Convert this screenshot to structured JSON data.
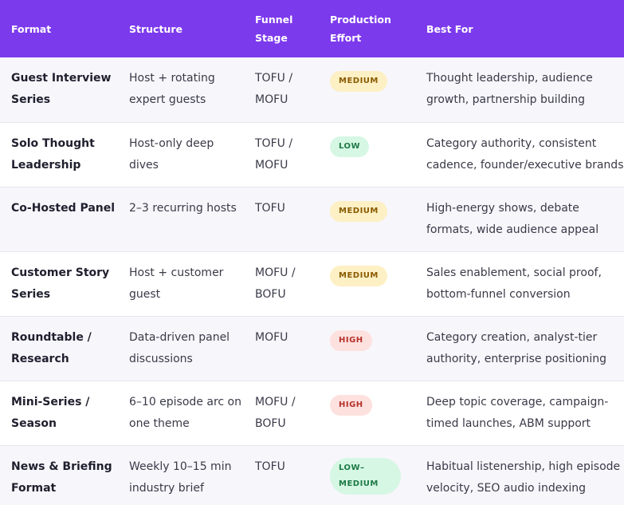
{
  "headers": {
    "format": "Format",
    "structure": "Structure",
    "funnel_line1": "Funnel",
    "funnel_line2": "Stage",
    "effort_line1": "Production",
    "effort_line2": "Effort",
    "best_for": "Best For"
  },
  "rows": [
    {
      "format": "Guest Interview Series",
      "structure": "Host + rotating expert guests",
      "funnel": "TOFU / MOFU",
      "effort": "MEDIUM",
      "best_for": "Thought leadership, audience growth, partnership building"
    },
    {
      "format": "Solo Thought Leadership",
      "structure": "Host-only deep dives",
      "funnel": "TOFU / MOFU",
      "effort": "LOW",
      "best_for": "Category authority, consistent cadence, founder/executive brands"
    },
    {
      "format": "Co-Hosted Panel",
      "structure": "2–3 recurring hosts",
      "funnel": "TOFU",
      "effort": "MEDIUM",
      "best_for": "High-energy shows, debate formats, wide audience appeal"
    },
    {
      "format": "Customer Story Series",
      "structure": "Host + customer guest",
      "funnel": "MOFU / BOFU",
      "effort": "MEDIUM",
      "best_for": "Sales enablement, social proof, bottom-funnel conversion"
    },
    {
      "format": "Roundtable / Research",
      "structure": "Data-driven panel discussions",
      "funnel": "MOFU",
      "effort": "HIGH",
      "best_for": "Category creation, analyst-tier authority, enterprise positioning"
    },
    {
      "format": "Mini-Series / Season",
      "structure": "6–10 episode arc on one theme",
      "funnel": "MOFU / BOFU",
      "effort": "HIGH",
      "best_for": "Deep topic coverage, campaign-timed launches, ABM support"
    },
    {
      "format": "News & Briefing Format",
      "structure": "Weekly 10–15 min industry brief",
      "funnel": "TOFU",
      "effort": "LOW–MEDIUM",
      "best_for": "Habitual listenership, high episode velocity, SEO audio indexing"
    }
  ],
  "colors": {
    "header_bg": "#7c3aed",
    "medium_badge": "#fdf0c4",
    "low_badge": "#d6f7e4",
    "high_badge": "#fde1df"
  }
}
